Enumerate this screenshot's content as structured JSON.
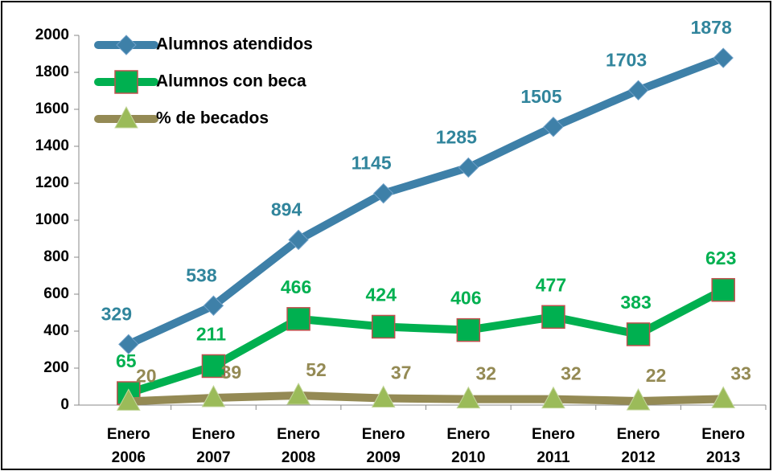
{
  "chart_data": {
    "type": "line",
    "categories": [
      "Enero 2006",
      "Enero 2007",
      "Enero 2008",
      "Enero 2009",
      "Enero 2010",
      "Enero 2011",
      "Enero 2012",
      "Enero 2013"
    ],
    "series": [
      {
        "name": "Alumnos atendidos",
        "color": "#3e80a8",
        "label_color": "#31859c",
        "marker": "diamond",
        "values": [
          329,
          538,
          894,
          1145,
          1285,
          1505,
          1703,
          1878
        ]
      },
      {
        "name": "Alumnos con beca",
        "color": "#00b050",
        "label_color": "#00b050",
        "marker": "square",
        "values": [
          65,
          211,
          466,
          424,
          406,
          477,
          383,
          623
        ]
      },
      {
        "name": "% de becados",
        "color": "#948a54",
        "label_color": "#948a54",
        "marker": "triangle",
        "values": [
          20,
          39,
          52,
          37,
          32,
          32,
          22,
          33
        ]
      }
    ],
    "ylim": [
      0,
      2000
    ],
    "yticks": [
      0,
      200,
      400,
      600,
      800,
      1000,
      1200,
      1400,
      1600,
      1800,
      2000
    ],
    "legend": "top-left"
  }
}
